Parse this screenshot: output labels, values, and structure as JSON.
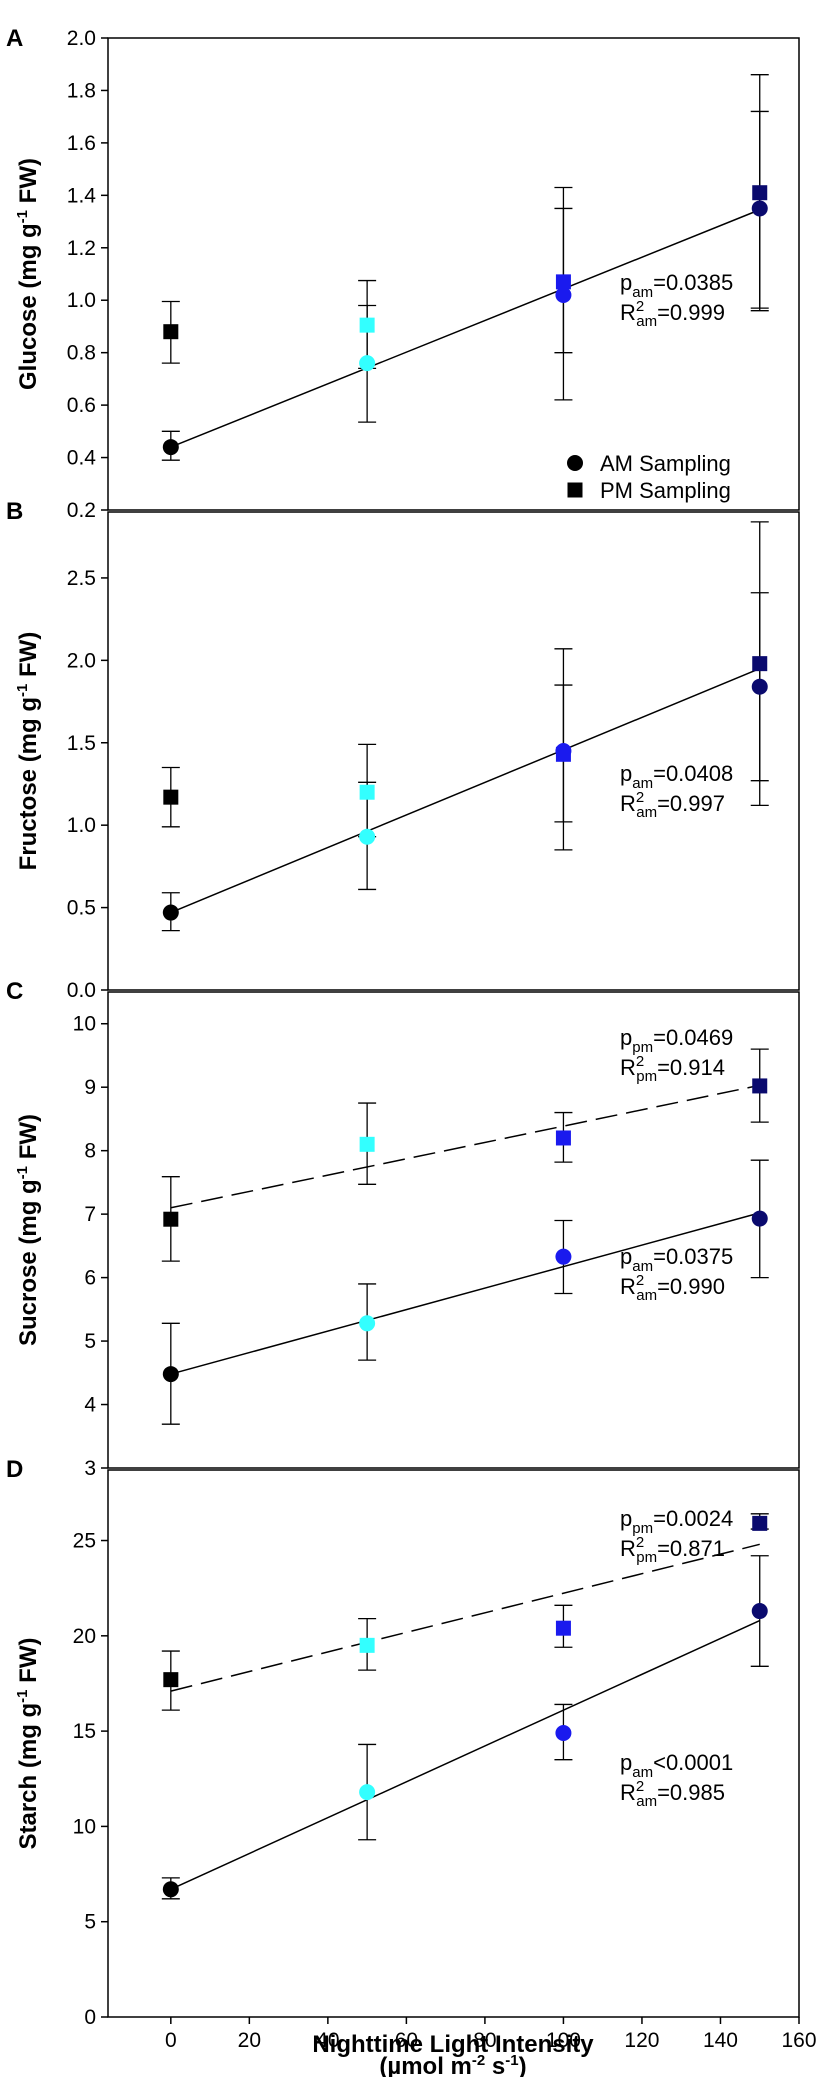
{
  "colors": {
    "0": "#000000",
    "50": "#33ffff",
    "100": "#1a1aee",
    "150": "#0a0a6e"
  },
  "x_axis": {
    "ticks": [
      0,
      20,
      40,
      60,
      80,
      100,
      120,
      140,
      160
    ],
    "xlim": [
      -16,
      160
    ],
    "label_line1": "Nighttime Light Intensity",
    "label_line2_prefix": "(µmol m",
    "label_line2_sup1": "-2",
    "label_line2_mid": " s",
    "label_line2_sup2": "-1",
    "label_line2_suffix": ")"
  },
  "legend": {
    "am": "AM Sampling",
    "pm": "PM Sampling"
  },
  "chart_data": [
    {
      "panel": "A",
      "type": "scatter",
      "ylabel_prefix": "Glucose (mg g",
      "ylabel_sup": "-1",
      "ylabel_suffix": " FW)",
      "ylim": [
        0.2,
        2.0
      ],
      "yticks": [
        0.2,
        0.4,
        0.6,
        0.8,
        1.0,
        1.2,
        1.4,
        1.6,
        1.8,
        2.0
      ],
      "ytick_labels": [
        "0.2",
        "0.4",
        "0.6",
        "0.8",
        "1.0",
        "1.2",
        "1.4",
        "1.6",
        "1.8",
        "2.0"
      ],
      "x": [
        0,
        50,
        100,
        150
      ],
      "series": [
        {
          "name": "AM Sampling",
          "marker": "circle",
          "values": [
            0.44,
            0.76,
            1.02,
            1.35
          ],
          "err_low": [
            0.39,
            0.535,
            0.62,
            0.96
          ],
          "err_high": [
            0.5,
            0.98,
            1.35,
            1.72
          ]
        },
        {
          "name": "PM Sampling",
          "marker": "square",
          "values": [
            0.88,
            0.905,
            1.07,
            1.41
          ],
          "err_low": [
            0.76,
            0.74,
            0.8,
            0.97
          ],
          "err_high": [
            0.995,
            1.075,
            1.43,
            1.86
          ]
        }
      ],
      "fits": [
        {
          "series": "AM Sampling",
          "style": "solid",
          "y0": 0.44,
          "y1": 1.345
        }
      ],
      "annotations": [
        {
          "p": "p",
          "p_sub": "am",
          "p_val": "=0.0385",
          "r": "R",
          "r_sup": "2",
          "r_sub": "am",
          "r_val": "=0.999"
        }
      ]
    },
    {
      "panel": "B",
      "type": "scatter",
      "ylabel_prefix": "Fructose (mg g",
      "ylabel_sup": "-1",
      "ylabel_suffix": " FW)",
      "ylim": [
        0.0,
        2.9
      ],
      "yticks": [
        0.0,
        0.5,
        1.0,
        1.5,
        2.0,
        2.5
      ],
      "ytick_labels": [
        "0.0",
        "0.5",
        "1.0",
        "1.5",
        "2.0",
        "2.5"
      ],
      "x": [
        0,
        50,
        100,
        150
      ],
      "series": [
        {
          "name": "AM Sampling",
          "marker": "circle",
          "values": [
            0.47,
            0.93,
            1.45,
            1.84
          ],
          "err_low": [
            0.36,
            0.61,
            0.85,
            1.27
          ],
          "err_high": [
            0.59,
            1.26,
            2.07,
            2.41
          ]
        },
        {
          "name": "PM Sampling",
          "marker": "square",
          "values": [
            1.17,
            1.2,
            1.43,
            1.98
          ],
          "err_low": [
            0.99,
            0.93,
            1.02,
            1.12
          ],
          "err_high": [
            1.35,
            1.49,
            1.85,
            2.84
          ]
        }
      ],
      "fits": [
        {
          "series": "AM Sampling",
          "style": "solid",
          "y0": 0.47,
          "y1": 1.95
        }
      ],
      "annotations": [
        {
          "p": "p",
          "p_sub": "am",
          "p_val": "=0.0408",
          "r": "R",
          "r_sup": "2",
          "r_sub": "am",
          "r_val": "=0.997"
        }
      ]
    },
    {
      "panel": "C",
      "type": "scatter",
      "ylabel_prefix": "Sucrose (mg g",
      "ylabel_sup": "-1",
      "ylabel_suffix": " FW)",
      "ylim": [
        3,
        10.5
      ],
      "yticks": [
        3,
        4,
        5,
        6,
        7,
        8,
        9,
        10
      ],
      "ytick_labels": [
        "3",
        "4",
        "5",
        "6",
        "7",
        "8",
        "9",
        "10"
      ],
      "x": [
        0,
        50,
        100,
        150
      ],
      "series": [
        {
          "name": "AM Sampling",
          "marker": "circle",
          "values": [
            4.48,
            5.28,
            6.33,
            6.93
          ],
          "err_low": [
            3.69,
            4.7,
            5.75,
            6.0
          ],
          "err_high": [
            5.28,
            5.9,
            6.9,
            7.85
          ]
        },
        {
          "name": "PM Sampling",
          "marker": "square",
          "values": [
            6.92,
            8.1,
            8.2,
            9.02
          ],
          "err_low": [
            6.26,
            7.47,
            7.82,
            8.45
          ],
          "err_high": [
            7.59,
            8.75,
            8.6,
            9.6
          ]
        }
      ],
      "fits": [
        {
          "series": "AM Sampling",
          "style": "solid",
          "y0": 4.48,
          "y1": 7.02
        },
        {
          "series": "PM Sampling",
          "style": "dashed",
          "y0": 7.1,
          "y1": 9.03
        }
      ],
      "annotations": [
        {
          "p": "p",
          "p_sub": "pm",
          "p_val": "=0.0469",
          "r": "R",
          "r_sup": "2",
          "r_sub": "pm",
          "r_val": "=0.914"
        },
        {
          "p": "p",
          "p_sub": "am",
          "p_val": "=0.0375",
          "r": "R",
          "r_sup": "2",
          "r_sub": "am",
          "r_val": "=0.990"
        }
      ]
    },
    {
      "panel": "D",
      "type": "scatter",
      "ylabel_prefix": "Starch (mg g",
      "ylabel_sup": "-1",
      "ylabel_suffix": " FW)",
      "ylim": [
        0,
        28.7
      ],
      "yticks": [
        0,
        5,
        10,
        15,
        20,
        25
      ],
      "ytick_labels": [
        "0",
        "5",
        "10",
        "15",
        "20",
        "25"
      ],
      "x": [
        0,
        50,
        100,
        150
      ],
      "series": [
        {
          "name": "AM Sampling",
          "marker": "circle",
          "values": [
            6.7,
            11.8,
            14.9,
            21.3
          ],
          "err_low": [
            6.2,
            9.3,
            13.5,
            18.4
          ],
          "err_high": [
            7.3,
            14.3,
            16.4,
            24.2
          ]
        },
        {
          "name": "PM Sampling",
          "marker": "square",
          "values": [
            17.7,
            19.5,
            20.4,
            25.9
          ],
          "err_low": [
            16.1,
            18.2,
            19.4,
            25.6
          ],
          "err_high": [
            19.2,
            20.9,
            21.6,
            26.4
          ]
        }
      ],
      "fits": [
        {
          "series": "AM Sampling",
          "style": "solid",
          "y0": 6.7,
          "y1": 20.8
        },
        {
          "series": "PM Sampling",
          "style": "dashed",
          "y0": 17.1,
          "y1": 24.8
        }
      ],
      "annotations": [
        {
          "p": "p",
          "p_sub": "pm",
          "p_val": "=0.0024",
          "r": "R",
          "r_sup": "2",
          "r_sub": "pm",
          "r_val": "=0.871"
        },
        {
          "p": "p",
          "p_sub": "am",
          "p_val": "<0.0001",
          "r": "R",
          "r_sup": "2",
          "r_sub": "am",
          "r_val": "=0.985"
        }
      ]
    }
  ]
}
